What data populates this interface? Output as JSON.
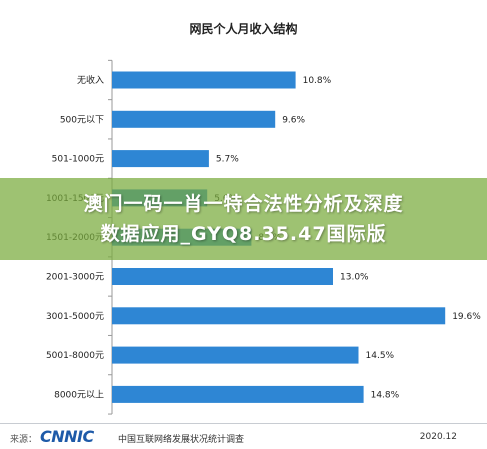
{
  "title": "网民个人月收入结构",
  "watermark": {
    "line1": "澳门一码一肖一特合法性分析及深度",
    "line2": "数据应用_GYQ8.35.47国际版"
  },
  "footer": {
    "source_label": "来源：",
    "logo": "CNNIC",
    "org": "中国互联网络发展状况统计调查",
    "date": "2020.12"
  },
  "colors": {
    "bar": "#2e86d4",
    "axis": "#999999"
  },
  "chart_data": {
    "type": "bar",
    "orientation": "horizontal",
    "categories": [
      "无收入",
      "500元以下",
      "501-1000元",
      "1001-1500元",
      "1501-2000元",
      "2001-3000元",
      "3001-5000元",
      "5001-8000元",
      "8000元以上"
    ],
    "category_labels": [
      "无收入",
      "500元以下",
      "501-1000元",
      "1001-1500元",
      "1501-2000元",
      "2001-3000元",
      "3001-5000元",
      "5001-8000元",
      "8000元以上"
    ],
    "values": [
      10.8,
      9.6,
      5.7,
      5.6,
      8.2,
      13.0,
      19.6,
      14.5,
      14.8
    ],
    "value_labels": [
      "10.8%",
      "9.6%",
      "5.7%",
      "5.6%",
      "8.2%",
      "13.0%",
      "19.6%",
      "14.5%",
      "14.8%"
    ],
    "xlim": [
      0,
      20
    ],
    "grid": false,
    "legend": "none"
  }
}
